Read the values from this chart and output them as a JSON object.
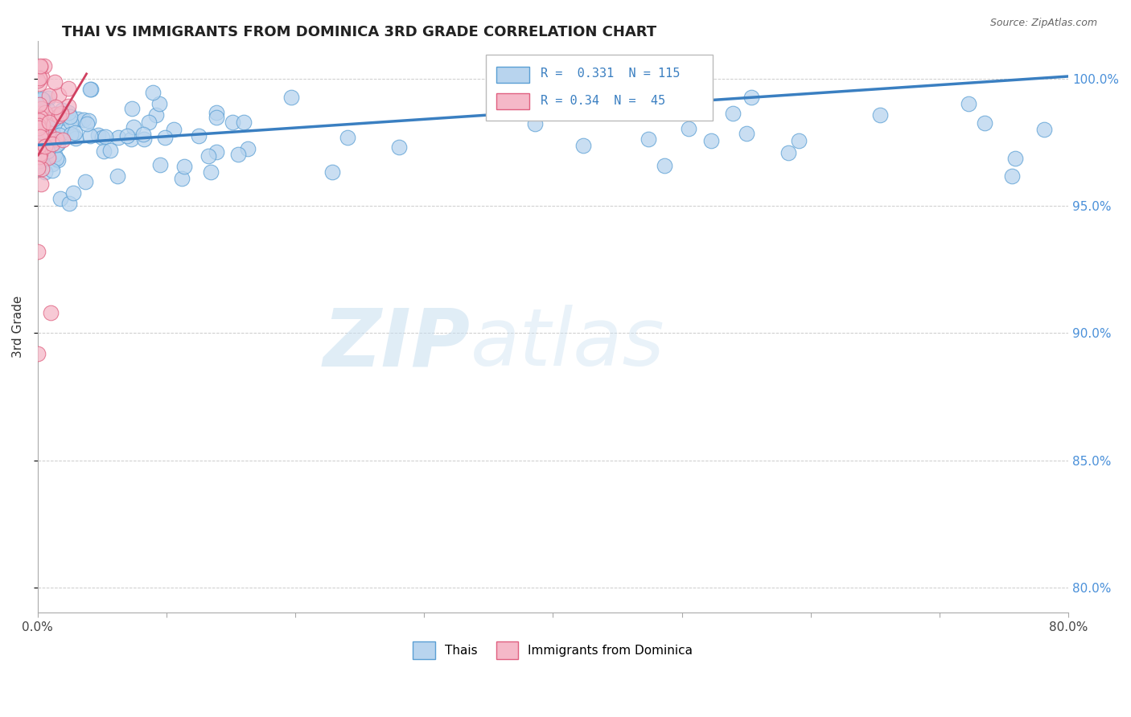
{
  "title": "THAI VS IMMIGRANTS FROM DOMINICA 3RD GRADE CORRELATION CHART",
  "source": "Source: ZipAtlas.com",
  "ylabel": "3rd Grade",
  "xlim": [
    0.0,
    80.0
  ],
  "ylim": [
    79.0,
    101.5
  ],
  "yticks": [
    80.0,
    85.0,
    90.0,
    95.0,
    100.0
  ],
  "xticks": [
    0.0,
    10.0,
    20.0,
    30.0,
    40.0,
    50.0,
    60.0,
    70.0,
    80.0
  ],
  "xtick_labels": [
    "0.0%",
    "",
    "",
    "",
    "",
    "",
    "",
    "",
    "80.0%"
  ],
  "ytick_labels_right": [
    "80.0%",
    "85.0%",
    "90.0%",
    "95.0%",
    "100.0%"
  ],
  "blue_fill": "#b8d4ee",
  "blue_edge": "#5a9fd4",
  "pink_fill": "#f5b8c8",
  "pink_edge": "#e06080",
  "blue_line_color": "#3a7fc1",
  "pink_line_color": "#d04060",
  "legend_blue_label": "Thais",
  "legend_pink_label": "Immigrants from Dominica",
  "R_blue": 0.331,
  "N_blue": 115,
  "R_pink": 0.34,
  "N_pink": 45,
  "watermark_zip": "ZIP",
  "watermark_atlas": "atlas",
  "background_color": "#ffffff",
  "blue_line_x": [
    0.0,
    80.0
  ],
  "blue_line_y": [
    97.4,
    100.1
  ],
  "pink_line_x": [
    0.05,
    3.8
  ],
  "pink_line_y": [
    97.0,
    100.2
  ]
}
